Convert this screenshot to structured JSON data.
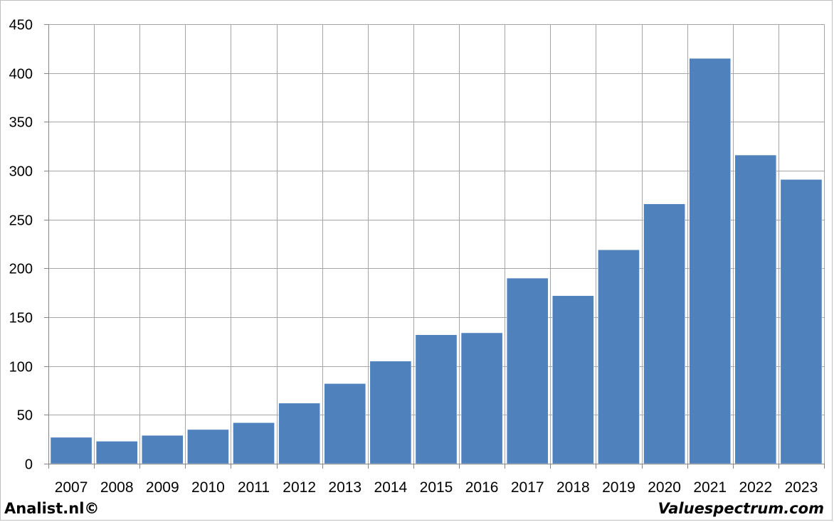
{
  "chart_data": {
    "type": "bar",
    "categories": [
      "2007",
      "2008",
      "2009",
      "2010",
      "2011",
      "2012",
      "2013",
      "2014",
      "2015",
      "2016",
      "2017",
      "2018",
      "2019",
      "2020",
      "2021",
      "2022",
      "2023"
    ],
    "values": [
      27,
      23,
      29,
      35,
      42,
      62,
      82,
      105,
      132,
      134,
      190,
      172,
      219,
      266,
      415,
      316,
      291
    ],
    "title": "",
    "xlabel": "",
    "ylabel": "",
    "ylim": [
      0,
      450
    ],
    "yticks": [
      0,
      50,
      100,
      150,
      200,
      250,
      300,
      350,
      400,
      450
    ],
    "grid": true,
    "bar_color": "#4f81bd"
  },
  "footer": {
    "left_text": "Analist.nl©",
    "right_text": "Valuespectrum.com"
  }
}
